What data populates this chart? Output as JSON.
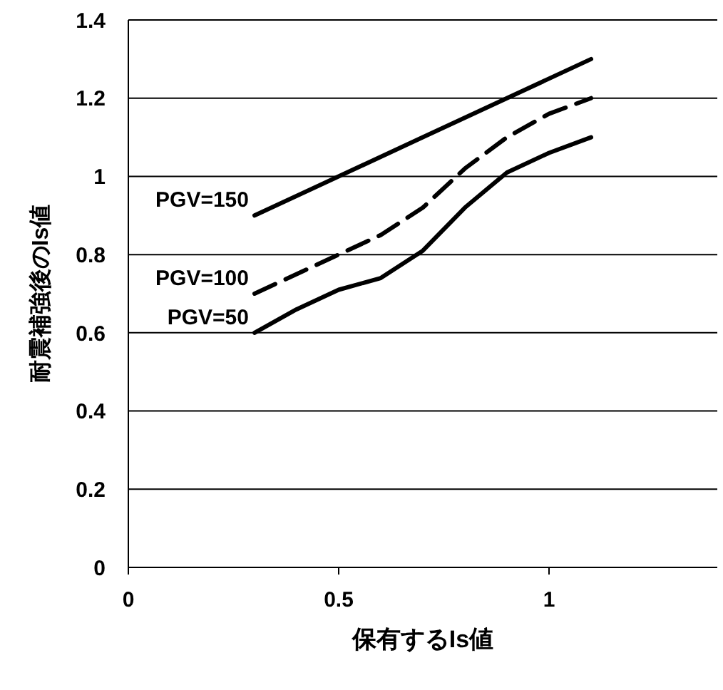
{
  "chart_data": {
    "type": "line",
    "xlabel": "保有するIs値",
    "ylabel": "耐震補強後のIs値",
    "xlim": [
      0,
      1.4
    ],
    "xticks": [
      0,
      0.5,
      1
    ],
    "ylim": [
      0,
      1.4
    ],
    "yticks": [
      0,
      0.2,
      0.4,
      0.6,
      0.8,
      1,
      1.2,
      1.4
    ],
    "grid": "y",
    "legend": false,
    "marker": "none",
    "series": [
      {
        "name": "PGV=150",
        "color": "#000000",
        "line_style": "solid",
        "x": [
          0.3,
          0.7,
          1.1
        ],
        "values": [
          0.9,
          1.1,
          1.3
        ]
      },
      {
        "name": "PGV=100",
        "color": "#000000",
        "line_style": "dashed",
        "x": [
          0.3,
          0.5,
          0.6,
          0.7,
          0.8,
          0.9,
          1.0,
          1.1
        ],
        "values": [
          0.7,
          0.8,
          0.85,
          0.92,
          1.02,
          1.1,
          1.16,
          1.2
        ]
      },
      {
        "name": "PGV=50",
        "color": "#000000",
        "line_style": "solid",
        "x": [
          0.3,
          0.4,
          0.5,
          0.6,
          0.7,
          0.8,
          0.9,
          1.0,
          1.1
        ],
        "values": [
          0.6,
          0.66,
          0.71,
          0.74,
          0.81,
          0.92,
          1.01,
          1.06,
          1.1
        ]
      }
    ]
  }
}
